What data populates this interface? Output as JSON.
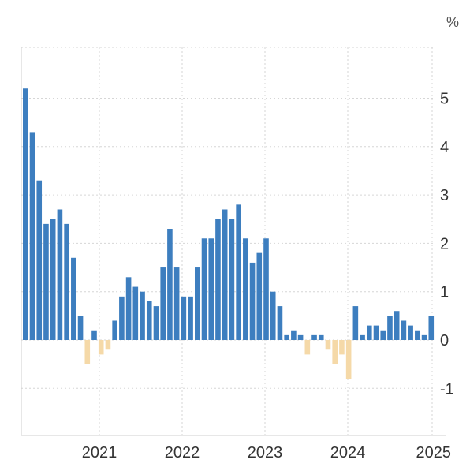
{
  "chart_data": {
    "type": "bar",
    "unit_label": "%",
    "x_tick_labels": [
      "2021",
      "2022",
      "2023",
      "2024",
      "2025"
    ],
    "y_tick_labels": [
      "-1",
      "0",
      "1",
      "2",
      "3",
      "4",
      "5"
    ],
    "ylim": [
      -2.0,
      6.0
    ],
    "grid": true,
    "colors": {
      "positive": "#3d7ebf",
      "negative": "#f5d9a8",
      "grid": "#d6d6d6",
      "axis": "#cfcfcf"
    },
    "series": [
      {
        "values": [
          5.2,
          4.3,
          3.3,
          2.4,
          2.5,
          2.7,
          2.4,
          1.7,
          0.5,
          -0.5,
          0.2,
          -0.3,
          -0.2,
          0.4,
          0.9,
          1.3,
          1.1,
          1.0,
          0.8,
          0.7,
          1.5,
          2.3,
          1.5,
          0.9,
          0.9,
          1.5,
          2.1,
          2.1,
          2.5,
          2.7,
          2.5,
          2.8,
          2.1,
          1.6,
          1.8,
          2.1,
          1.0,
          0.7,
          0.1,
          0.2,
          0.1,
          -0.3,
          0.1,
          0.1,
          -0.2,
          -0.5,
          -0.3,
          -0.8,
          0.7,
          0.1,
          0.3,
          0.3,
          0.2,
          0.5,
          0.6,
          0.4,
          0.3,
          0.2,
          0.1,
          0.5
        ]
      }
    ]
  }
}
